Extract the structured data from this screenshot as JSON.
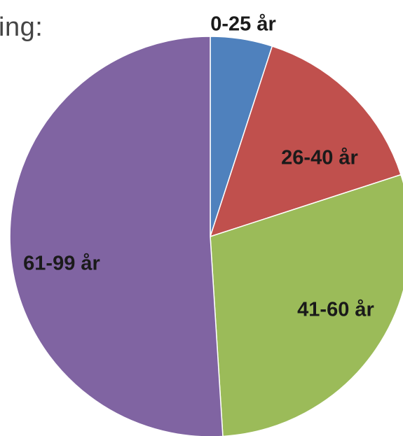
{
  "header": {
    "title_fragment": "ing:"
  },
  "chart_data": {
    "type": "pie",
    "categories": [
      "0-25 år",
      "26-40 år",
      "41-60 år",
      "61-99 år"
    ],
    "values": [
      5,
      15,
      29,
      51
    ],
    "colors": [
      "#4f81bd",
      "#c0504d",
      "#9bbb59",
      "#8064a2"
    ],
    "legend": "none",
    "data_labels": [
      "0-25 år",
      "26-40 år",
      "41-60 år",
      "61-99 år"
    ]
  }
}
